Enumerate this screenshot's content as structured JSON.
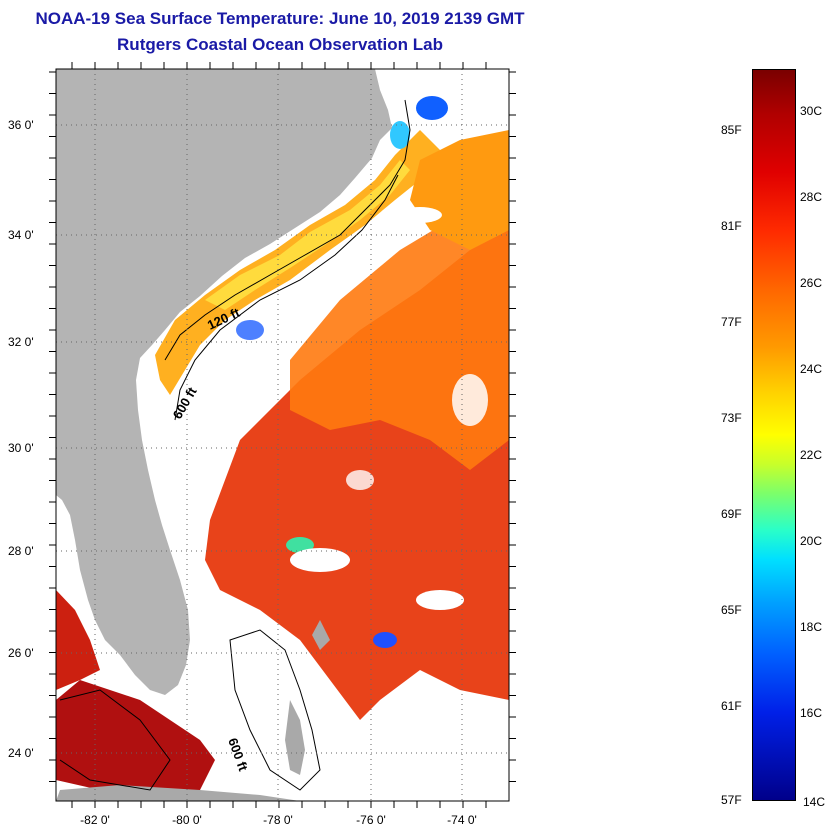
{
  "title": {
    "line1": "NOAA-19 Sea Surface Temperature:  June 10, 2019 2139 GMT",
    "line2": "Rutgers Coastal Ocean Observation Lab"
  },
  "map": {
    "lat_ticks": [
      "36 0'",
      "34 0'",
      "32 0'",
      "30 0'",
      "28 0'",
      "26 0'",
      "24 0'"
    ],
    "lon_ticks": [
      "-82 0'",
      "-80 0'",
      "-78 0'",
      "-76 0'",
      "-74 0'"
    ],
    "contour_labels": [
      "120 ft",
      "600 ft",
      "600 ft"
    ]
  },
  "colorbar": {
    "fahrenheit_labels": [
      "85F",
      "81F",
      "77F",
      "73F",
      "69F",
      "65F",
      "61F",
      "57F"
    ],
    "celsius_labels": [
      "30C",
      "28C",
      "26C",
      "24C",
      "22C",
      "20C",
      "18C",
      "16C",
      "14C"
    ]
  },
  "colors": {
    "title": "#1a1aa6",
    "land": "#b4b4b4",
    "sst_warm": "#e83a10",
    "sst_mid": "#ff8a00",
    "sst_cool": "#ffd21a"
  }
}
